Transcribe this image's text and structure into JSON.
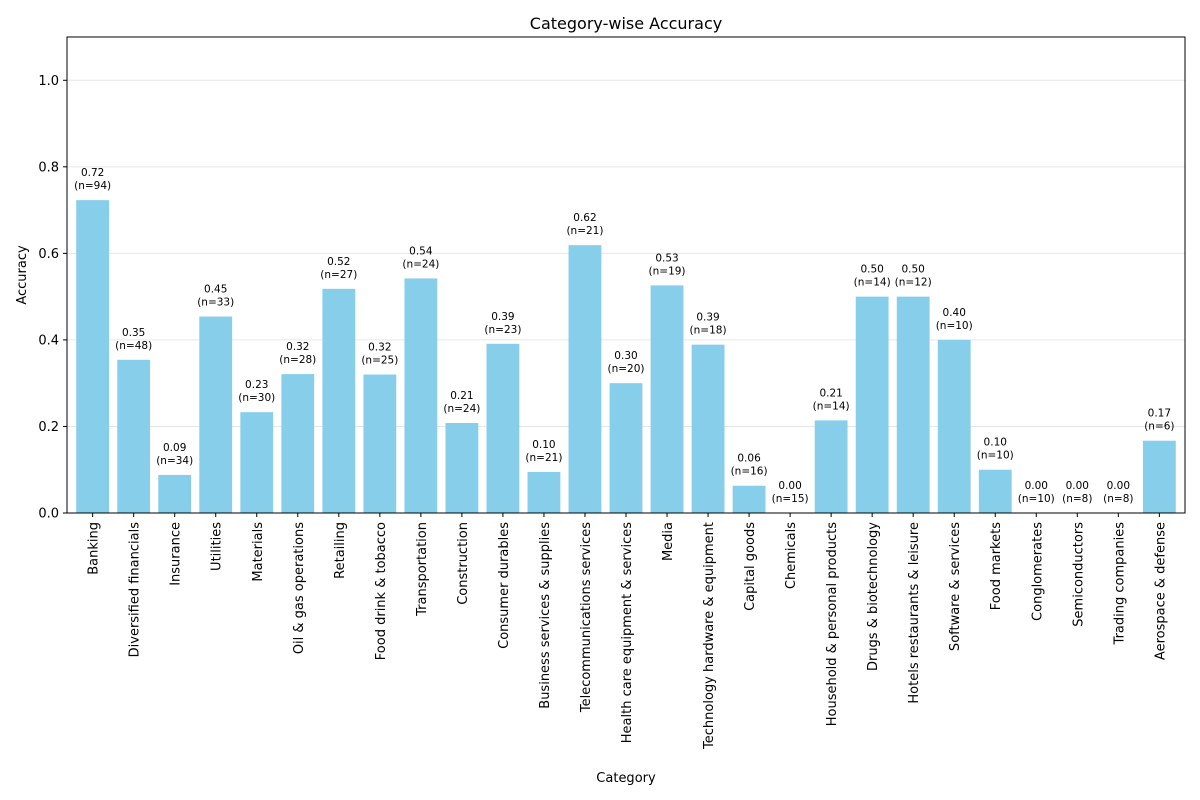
{
  "chart_data": {
    "type": "bar",
    "title": "Category-wise Accuracy",
    "xlabel": "Category",
    "ylabel": "Accuracy",
    "ylim": [
      0,
      1.1
    ],
    "yticks": [
      "0.0",
      "0.2",
      "0.4",
      "0.6",
      "0.8",
      "1.0"
    ],
    "grid": "y-axis",
    "bar_color": "#87CEEB",
    "categories": [
      "Banking",
      "Diversified financials",
      "Insurance",
      "Utilities",
      "Materials",
      "Oil & gas operations",
      "Retailing",
      "Food drink & tobacco",
      "Transportation",
      "Construction",
      "Consumer durables",
      "Business services & supplies",
      "Telecommunications services",
      "Health care equipment & services",
      "Media",
      "Technology hardware & equipment",
      "Capital goods",
      "Chemicals",
      "Household & personal products",
      "Drugs & biotechnology",
      "Hotels restaurants & leisure",
      "Software & services",
      "Food markets",
      "Conglomerates",
      "Semiconductors",
      "Trading companies",
      "Aerospace & defense"
    ],
    "values": [
      0.723,
      0.354,
      0.088,
      0.454,
      0.233,
      0.321,
      0.518,
      0.32,
      0.542,
      0.208,
      0.391,
      0.095,
      0.619,
      0.3,
      0.526,
      0.389,
      0.063,
      0.0,
      0.214,
      0.5,
      0.5,
      0.4,
      0.1,
      0.0,
      0.0,
      0.0,
      0.167
    ],
    "value_labels": [
      "0.72",
      "0.35",
      "0.09",
      "0.45",
      "0.23",
      "0.32",
      "0.52",
      "0.32",
      "0.54",
      "0.21",
      "0.39",
      "0.10",
      "0.62",
      "0.30",
      "0.53",
      "0.39",
      "0.06",
      "0.00",
      "0.21",
      "0.50",
      "0.50",
      "0.40",
      "0.10",
      "0.00",
      "0.00",
      "0.00",
      "0.17"
    ],
    "count_labels": [
      "(n=94)",
      "(n=48)",
      "(n=34)",
      "(n=33)",
      "(n=30)",
      "(n=28)",
      "(n=27)",
      "(n=25)",
      "(n=24)",
      "(n=24)",
      "(n=23)",
      "(n=21)",
      "(n=21)",
      "(n=20)",
      "(n=19)",
      "(n=18)",
      "(n=16)",
      "(n=15)",
      "(n=14)",
      "(n=14)",
      "(n=12)",
      "(n=10)",
      "(n=10)",
      "(n=10)",
      "(n=8)",
      "(n=8)",
      "(n=6)"
    ]
  }
}
